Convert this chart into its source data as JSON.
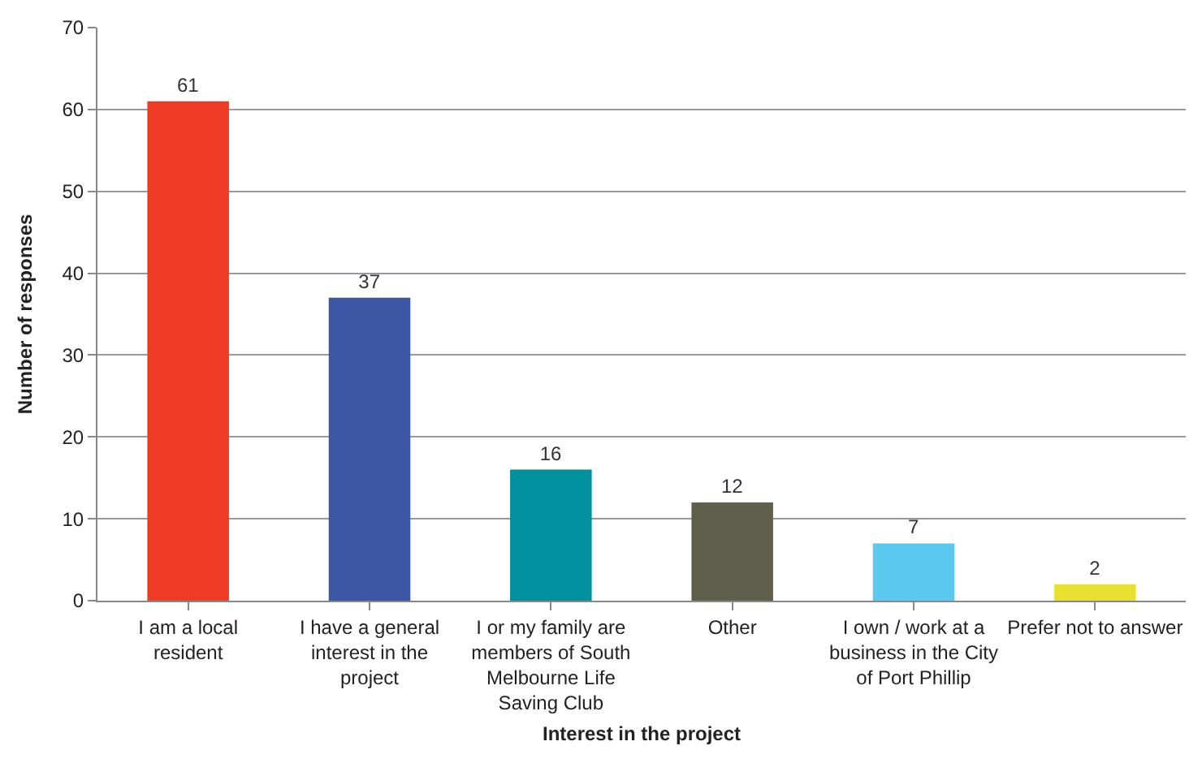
{
  "chart_data": {
    "type": "bar",
    "categories": [
      "I am a local resident",
      "I have a general interest in the project",
      "I or my family are members of South Melbourne Life Saving Club",
      "Other",
      "I own / work at a business in the City of Port Phillip",
      "Prefer not to answer"
    ],
    "values": [
      61,
      37,
      16,
      12,
      7,
      2
    ],
    "colors": [
      "#ef3b24",
      "#3c55a5",
      "#00909e",
      "#5f604b",
      "#5bc8f0",
      "#e8e030"
    ],
    "xlabel": "Interest in the project",
    "ylabel": "Number of responses",
    "ylim": [
      0,
      70
    ],
    "yticks": [
      0,
      10,
      20,
      30,
      40,
      50,
      60,
      70
    ],
    "grid": "y",
    "data_labels": true,
    "legend": false
  }
}
